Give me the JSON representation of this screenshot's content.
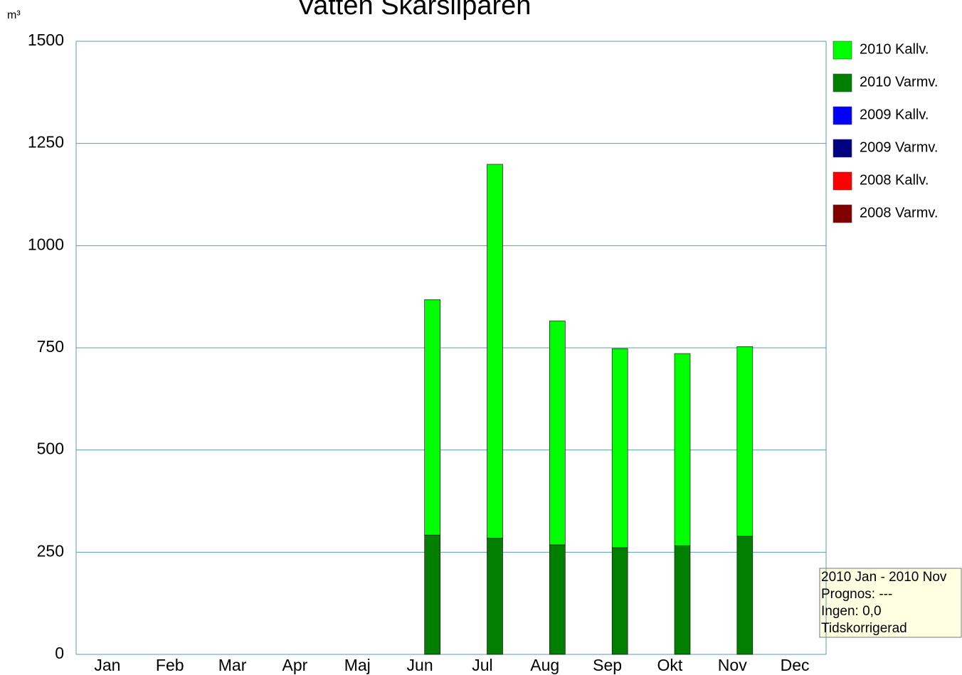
{
  "chart_data": {
    "type": "stacked-bar",
    "title": "Vatten Skarsliparen",
    "y_label": "m³",
    "categories": [
      "Jan",
      "Feb",
      "Mar",
      "Apr",
      "Maj",
      "Jun",
      "Jul",
      "Aug",
      "Sep",
      "Okt",
      "Nov",
      "Dec"
    ],
    "series": [
      {
        "name": "2010 Kallv.",
        "color": "#00ff00",
        "values": [
          null,
          null,
          null,
          null,
          null,
          576,
          915,
          548,
          487,
          470,
          464,
          null
        ]
      },
      {
        "name": "2010 Varmv.",
        "color": "#007f00",
        "values": [
          null,
          null,
          null,
          null,
          null,
          292,
          284,
          268,
          261,
          266,
          289,
          null
        ]
      },
      {
        "name": "2009 Kallv.",
        "color": "#0000ff",
        "values": [
          null,
          null,
          null,
          null,
          null,
          null,
          null,
          null,
          null,
          null,
          null,
          null
        ]
      },
      {
        "name": "2009 Varmv.",
        "color": "#000080",
        "values": [
          null,
          null,
          null,
          null,
          null,
          null,
          null,
          null,
          null,
          null,
          null,
          null
        ]
      },
      {
        "name": "2008 Kallv.",
        "color": "#ff0000",
        "values": [
          null,
          null,
          null,
          null,
          null,
          null,
          null,
          null,
          null,
          null,
          null,
          null
        ]
      },
      {
        "name": "2008 Varmv.",
        "color": "#800000",
        "values": [
          null,
          null,
          null,
          null,
          null,
          null,
          null,
          null,
          null,
          null,
          null,
          null
        ]
      }
    ],
    "ylim": [
      0,
      1500
    ],
    "yticks": [
      0,
      250,
      500,
      750,
      1000,
      1250,
      1500
    ],
    "grid": true,
    "grid_color": "#5a9ea8",
    "annotations": [
      "2010 Jan - 2010 Nov",
      "Prognos: ---",
      "Ingen: 0,0",
      "Tidskorrigerad"
    ]
  }
}
